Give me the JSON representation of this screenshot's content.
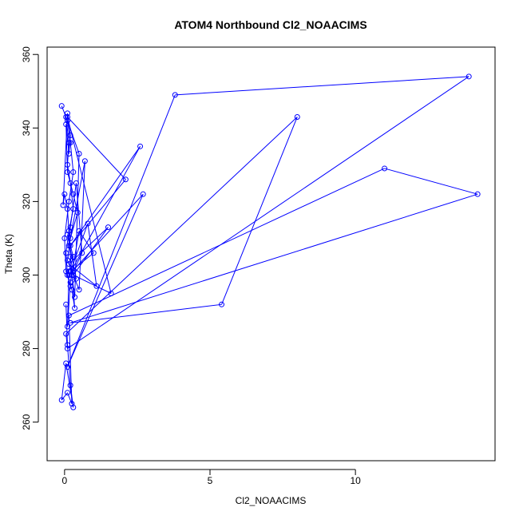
{
  "chart_data": {
    "type": "line",
    "title": "ATOM4 Northbound Cl2_NOAACIMS",
    "xlabel": "Cl2_NOAACIMS",
    "ylabel": "Theta (K)",
    "xlim": [
      -0.6,
      14.8
    ],
    "ylim": [
      249.5,
      362
    ],
    "xticks": [
      0,
      5,
      10
    ],
    "yticks": [
      260,
      280,
      300,
      320,
      340,
      360
    ],
    "grid": false,
    "legend": "none",
    "series": [
      {
        "color": "#0000ff",
        "markers": "open-circle",
        "x": [
          -0.1,
          0.05,
          0.15,
          0.1,
          0.2,
          0.3,
          0.15,
          0.05,
          0.1,
          0.25,
          0.35,
          0.2,
          0.1,
          0.0,
          -0.05,
          0.1,
          0.2,
          0.15,
          0.05,
          0.1,
          0.3,
          0.45,
          0.2,
          0.1,
          0.3,
          0.5,
          0.7,
          0.15,
          0.2,
          0.4,
          0.6,
          0.25,
          0.35,
          0.5,
          0.1,
          0.2,
          0.3,
          0.15,
          0.0,
          0.05,
          0.2,
          0.4,
          0.1,
          0.3,
          0.15,
          0.1,
          0.2,
          0.5,
          1.0,
          0.2,
          0.8,
          1.1,
          0.15,
          1.5,
          0.3,
          1.6,
          0.1,
          2.1,
          0.2,
          2.6,
          0.15,
          2.7,
          0.1,
          3.8,
          13.9,
          0.1,
          0.05,
          8.0,
          5.4,
          0.2,
          14.2,
          11.0,
          0.15,
          0.25,
          0.1,
          -0.1,
          0.05,
          0.3,
          0.2,
          0.1,
          0.05
        ],
        "y": [
          346,
          343,
          336,
          330,
          325,
          318,
          312,
          306,
          300,
          296,
          291,
          305,
          318,
          322,
          319,
          344,
          338,
          333,
          341,
          328,
          322,
          317,
          310,
          304,
          300,
          296,
          331,
          308,
          313,
          325,
          306,
          300,
          294,
          333,
          342,
          336,
          328,
          320,
          310,
          301,
          297,
          299,
          311,
          305,
          301,
          286,
          298,
          312,
          306,
          301,
          314,
          297,
          303,
          313,
          300,
          295,
          343,
          326,
          308,
          335,
          300,
          322,
          275,
          349,
          354,
          280,
          284,
          343,
          292,
          287,
          322,
          329,
          289,
          265,
          268,
          266,
          276,
          264,
          270,
          281,
          292
        ]
      }
    ]
  }
}
